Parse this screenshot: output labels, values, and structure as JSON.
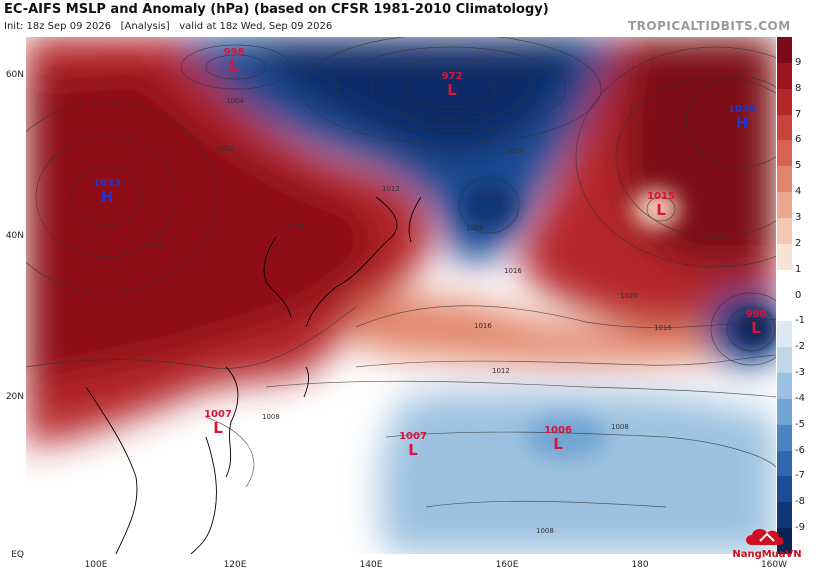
{
  "header": {
    "title": "EC-AIFS MSLP and Anomaly (hPa) (based on CFSR 1981-2010 Climatology)",
    "init": "Init: 18z Sep 09 2026",
    "mode": "[Analysis]",
    "valid": "valid at 18z Wed, Sep 09 2026",
    "brand": "TROPICALTIDBITS.COM"
  },
  "axes": {
    "lat_labels": [
      "60N",
      "40N",
      "20N",
      "EQ"
    ],
    "lon_labels": [
      "100E",
      "120E",
      "140E",
      "160E",
      "180",
      "160W"
    ]
  },
  "colorbar": {
    "labels": [
      "9",
      "8",
      "7",
      "6",
      "5",
      "4",
      "3",
      "2",
      "1",
      "0",
      "-1",
      "-2",
      "-3",
      "-4",
      "-5",
      "-6",
      "-7",
      "-8",
      "-9"
    ],
    "colors": [
      "#7d0a18",
      "#9c1420",
      "#b5262a",
      "#c8433a",
      "#d6634f",
      "#e2866b",
      "#eca88e",
      "#f3c8b2",
      "#f9e2d6",
      "#ffffff",
      "#ffffff",
      "#dce8f3",
      "#c0d7ea",
      "#9cc1e0",
      "#72a4d2",
      "#4c86c2",
      "#2e68b0",
      "#1b4c95",
      "#0f3576",
      "#0a2458"
    ]
  },
  "pressure_systems": [
    {
      "type": "L",
      "value": "998"
    },
    {
      "type": "L",
      "value": "972"
    },
    {
      "type": "H",
      "value": "1033"
    },
    {
      "type": "H",
      "value": "1039"
    },
    {
      "type": "L",
      "value": "1015"
    },
    {
      "type": "L",
      "value": "990"
    },
    {
      "type": "L",
      "value": "1007"
    },
    {
      "type": "L",
      "value": "1007"
    },
    {
      "type": "L",
      "value": "1006"
    }
  ],
  "isobar_labels": [
    "1004",
    "1008",
    "1012",
    "1016",
    "1020",
    "1024",
    "1028"
  ],
  "watermark": "NangMuaVN"
}
